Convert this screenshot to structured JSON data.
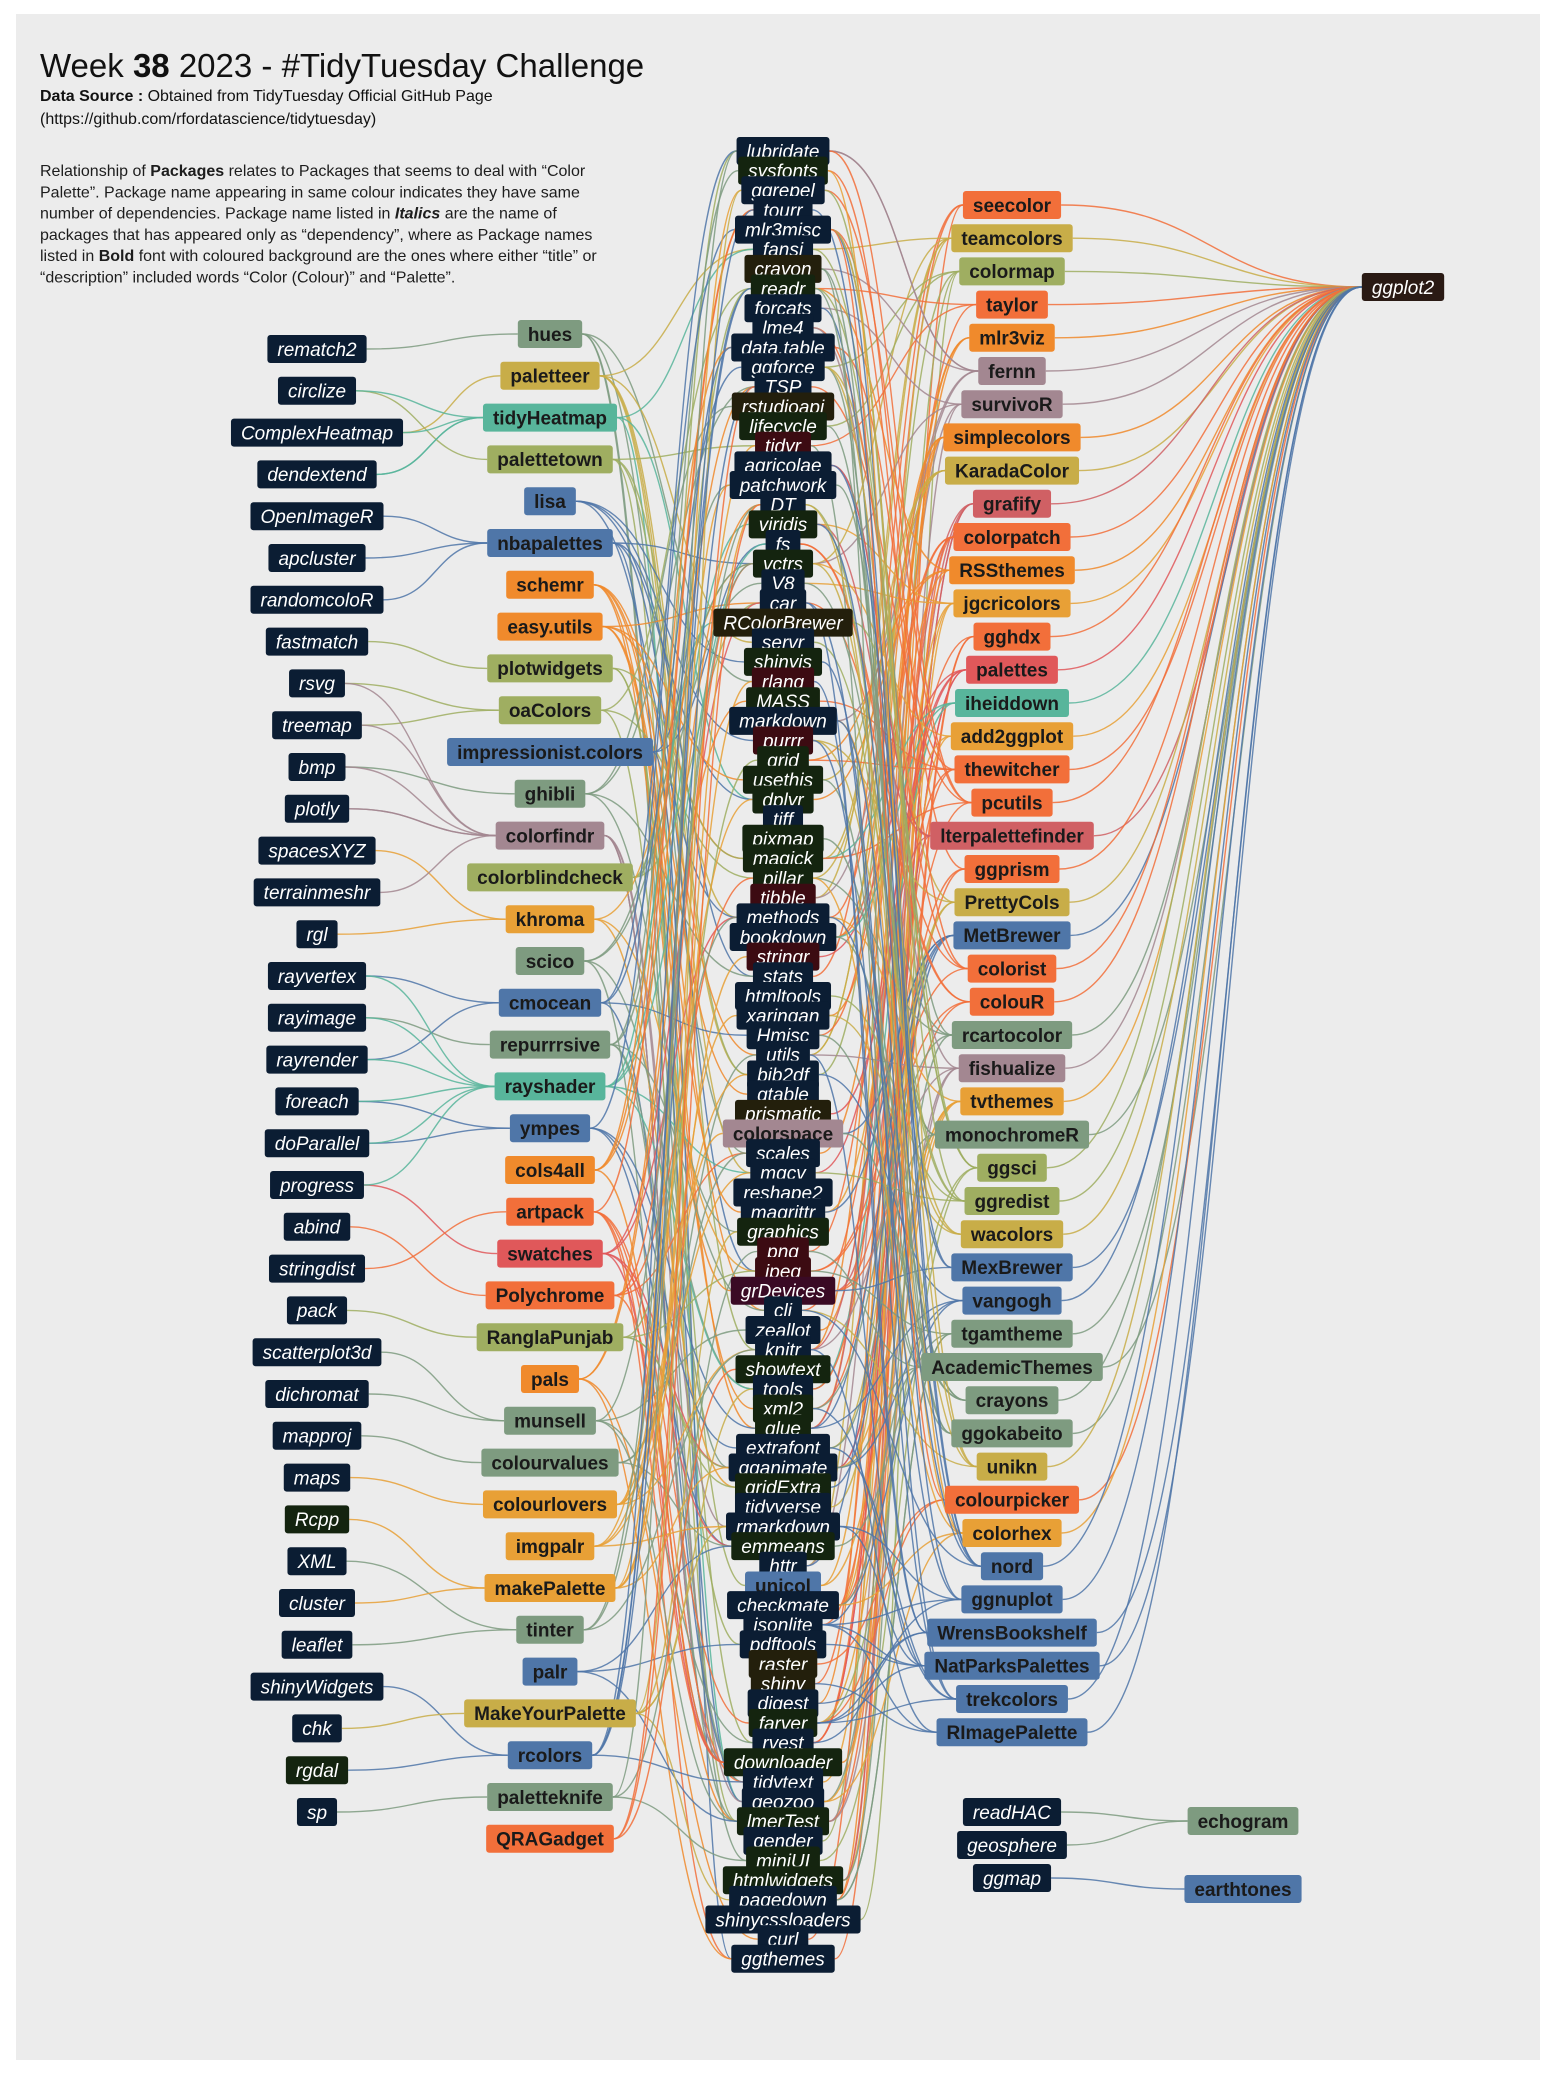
{
  "header": {
    "title_prefix": "Week ",
    "title_week": "38",
    "title_suffix": " 2023 - #TidyTuesday Challenge",
    "source_label": "Data Source :",
    "source_text": " Obtained from TidyTuesday Official GitHub Page",
    "source_url": "(https://github.com/rfordatascience/tidytuesday)",
    "desc_lines": [
      [
        {
          "t": "Relationship of "
        },
        {
          "t": "Packages",
          "b": true
        },
        {
          "t": " relates to Packages that seems to deal with “Color"
        }
      ],
      [
        {
          "t": "Palette”.  Package name appearing in same colour indicates they have same"
        }
      ],
      [
        {
          "t": "number of dependencies.  Package name listed in "
        },
        {
          "t": "Italics",
          "b": true,
          "i": true
        },
        {
          "t": " are the name of"
        }
      ],
      [
        {
          "t": "packages that has appeared only as “dependency”, where as Package names"
        }
      ],
      [
        {
          "t": "listed in "
        },
        {
          "t": "Bold",
          "b": true
        },
        {
          "t": " font with coloured background are the ones where either  “title” or"
        }
      ],
      [
        {
          "t": "“description” included words “Color (Colour)” and “Palette”."
        }
      ]
    ]
  },
  "colors": {
    "page": "#ffffff",
    "panel": "#ececec",
    "dep": "#0b1d33",
    "dark_green": "#14240f",
    "dark_olive": "#231f0c",
    "maroon": "#3c0b12",
    "purple": "#3a0a24",
    "hub": "#2a1a14"
  },
  "palette": {
    "A": "#f26f3a",
    "B": "#c8ad48",
    "C": "#9fae61",
    "D": "#e8a036",
    "E": "#7e9b80",
    "F": "#58b59b",
    "G": "#4f76a8",
    "H": "#a38791",
    "I": "#e0585a",
    "J": "#f08a2c",
    "K": "#d06064"
  },
  "diagram": {
    "hub": {
      "name": "ggplot2"
    },
    "col1": [
      "rematch2",
      "circlize",
      "ComplexHeatmap",
      "dendextend",
      "OpenImageR",
      "apcluster",
      "randomcoloR",
      "fastmatch",
      "rsvg",
      "treemap",
      "bmp",
      "plotly",
      "spacesXYZ",
      "terrainmeshr",
      "rgl",
      "rayvertex",
      "rayimage",
      "rayrender",
      "foreach",
      "doParallel",
      "progress",
      "abind",
      "stringdist",
      "pack",
      "scatterplot3d",
      "dichromat",
      "mapproj",
      "maps",
      "Rcpp",
      "XML",
      "cluster",
      "leaflet",
      "shinyWidgets",
      "chk",
      "rgdal",
      "sp"
    ],
    "col1_special": {
      "Rcpp": "dark_green",
      "rgdal": "dark_green"
    },
    "col2": [
      [
        "hues",
        "E"
      ],
      [
        "paletteer",
        "B"
      ],
      [
        "tidyHeatmap",
        "F"
      ],
      [
        "palettetown",
        "C"
      ],
      [
        "lisa",
        "G"
      ],
      [
        "nbapalettes",
        "G"
      ],
      [
        "schemr",
        "J"
      ],
      [
        "easy.utils",
        "J"
      ],
      [
        "plotwidgets",
        "C"
      ],
      [
        "oaColors",
        "C"
      ],
      [
        "impressionist.colors",
        "G"
      ],
      [
        "ghibli",
        "E"
      ],
      [
        "colorfindr",
        "H"
      ],
      [
        "colorblindcheck",
        "C"
      ],
      [
        "khroma",
        "D"
      ],
      [
        "scico",
        "E"
      ],
      [
        "cmocean",
        "G"
      ],
      [
        "repurrrsive",
        "E"
      ],
      [
        "rayshader",
        "F"
      ],
      [
        "ympes",
        "G"
      ],
      [
        "cols4all",
        "J"
      ],
      [
        "artpack",
        "A"
      ],
      [
        "swatches",
        "I"
      ],
      [
        "Polychrome",
        "A"
      ],
      [
        "RanglaPunjab",
        "C"
      ],
      [
        "pals",
        "J"
      ],
      [
        "munsell",
        "E"
      ],
      [
        "colourvalues",
        "E"
      ],
      [
        "colourlovers",
        "D"
      ],
      [
        "imgpalr",
        "D"
      ],
      [
        "makePalette",
        "D"
      ],
      [
        "tinter",
        "E"
      ],
      [
        "palr",
        "G"
      ],
      [
        "MakeYourPalette",
        "B"
      ],
      [
        "rcolors",
        "G"
      ],
      [
        "paletteknife",
        "E"
      ],
      [
        "QRAGadget",
        "A"
      ]
    ],
    "col3": [
      "lubridate",
      "sysfonts",
      "ggrepel",
      "tourr",
      "mlr3misc",
      "fansi",
      "crayon",
      "readr",
      "forcats",
      "lme4",
      "data.table",
      "ggforce",
      "TSP",
      "rstudioapi",
      "lifecycle",
      "tidyr",
      "agricolae",
      "patchwork",
      "DT",
      "viridis",
      "fs",
      "vctrs",
      "V8",
      "car",
      "RColorBrewer",
      "servr",
      "shinyjs",
      "rlang",
      "MASS",
      "markdown",
      "purrr",
      "grid",
      "usethis",
      "dplyr",
      "tiff",
      "pixmap",
      "magick",
      "pillar",
      "tibble",
      "methods",
      "bookdown",
      "stringr",
      "stats",
      "htmltools",
      "xaringan",
      "Hmisc",
      "utils",
      "bib2df",
      "gtable",
      "prismatic",
      "colorspace",
      "scales",
      "mgcv",
      "reshape2",
      "magrittr",
      "graphics",
      "png",
      "jpeg",
      "grDevices",
      "cli",
      "zeallot",
      "knitr",
      "showtext",
      "tools",
      "xml2",
      "glue",
      "extrafont",
      "gganimate",
      "gridExtra",
      "tidyverse",
      "rmarkdown",
      "emmeans",
      "httr",
      "unicol",
      "checkmate",
      "jsonlite",
      "pdftools",
      "raster",
      "shiny",
      "digest",
      "farver",
      "rvest",
      "downloader",
      "tidytext",
      "geozoo",
      "lmerTest",
      "gender",
      "miniUI",
      "htmlwidgets",
      "pagedown",
      "shinycssloaders",
      "curl",
      "ggthemes"
    ],
    "col3_colored": {
      "colorspace": "H",
      "unicol": "G"
    },
    "col3_special": {
      "sysfonts": "dark_green",
      "crayon": "dark_olive",
      "readr": "dark_green",
      "rstudioapi": "dark_olive",
      "lifecycle": "dark_green",
      "tidyr": "maroon",
      "viridis": "dark_green",
      "vctrs": "dark_green",
      "RColorBrewer": "dark_olive",
      "shinyjs": "dark_green",
      "rlang": "maroon",
      "MASS": "dark_green",
      "purrr": "maroon",
      "grid": "dark_green",
      "usethis": "dark_green",
      "dplyr": "dark_green",
      "pixmap": "dark_green",
      "magick": "dark_green",
      "pillar": "dark_green",
      "tibble": "maroon",
      "stringr": "maroon",
      "prismatic": "dark_olive",
      "graphics": "dark_green",
      "png": "maroon",
      "jpeg": "maroon",
      "grDevices": "purple",
      "showtext": "dark_green",
      "xml2": "dark_green",
      "glue": "dark_green",
      "gridExtra": "dark_green",
      "emmeans": "dark_green",
      "shiny": "dark_olive",
      "raster": "dark_olive",
      "farver": "dark_green",
      "downloader": "dark_green",
      "lmerTest": "dark_green",
      "miniUI": "dark_green",
      "htmlwidgets": "dark_green"
    },
    "col4": [
      [
        "seecolor",
        "A"
      ],
      [
        "teamcolors",
        "B"
      ],
      [
        "colormap",
        "C"
      ],
      [
        "taylor",
        "A"
      ],
      [
        "mlr3viz",
        "J"
      ],
      [
        "fernn",
        "H"
      ],
      [
        "survivoR",
        "H"
      ],
      [
        "simplecolors",
        "J"
      ],
      [
        "KaradaColor",
        "B"
      ],
      [
        "grafify",
        "K"
      ],
      [
        "colorpatch",
        "A"
      ],
      [
        "RSSthemes",
        "J"
      ],
      [
        "jgcricolors",
        "D"
      ],
      [
        "gghdx",
        "A"
      ],
      [
        "palettes",
        "I"
      ],
      [
        "iheiddown",
        "F"
      ],
      [
        "add2ggplot",
        "D"
      ],
      [
        "thewitcher",
        "A"
      ],
      [
        "pcutils",
        "A"
      ],
      [
        "lterpalettefinder",
        "K"
      ],
      [
        "ggprism",
        "A"
      ],
      [
        "PrettyCols",
        "B"
      ],
      [
        "MetBrewer",
        "G"
      ],
      [
        "colorist",
        "A"
      ],
      [
        "colouR",
        "A"
      ],
      [
        "rcartocolor",
        "E"
      ],
      [
        "fishualize",
        "H"
      ],
      [
        "tvthemes",
        "D"
      ],
      [
        "monochromeR",
        "E"
      ],
      [
        "ggsci",
        "C"
      ],
      [
        "ggredist",
        "C"
      ],
      [
        "wacolors",
        "B"
      ],
      [
        "MexBrewer",
        "G"
      ],
      [
        "vangogh",
        "G"
      ],
      [
        "tgamtheme",
        "E"
      ],
      [
        "AcademicThemes",
        "E"
      ],
      [
        "crayons",
        "E"
      ],
      [
        "ggokabeito",
        "E"
      ],
      [
        "unikn",
        "B"
      ],
      [
        "colourpicker",
        "A"
      ],
      [
        "colorhex",
        "D"
      ],
      [
        "nord",
        "G"
      ],
      [
        "ggnuplot",
        "G"
      ],
      [
        "WrensBookshelf",
        "G"
      ],
      [
        "NatParksPalettes",
        "G"
      ],
      [
        "trekcolors",
        "G"
      ],
      [
        "RImagePalette",
        "G"
      ]
    ],
    "bottom_deps": [
      "readHAC",
      "geosphere",
      "ggmap"
    ],
    "bottom_right": [
      [
        "echogram",
        "E"
      ],
      [
        "earthtones",
        "G"
      ]
    ]
  }
}
